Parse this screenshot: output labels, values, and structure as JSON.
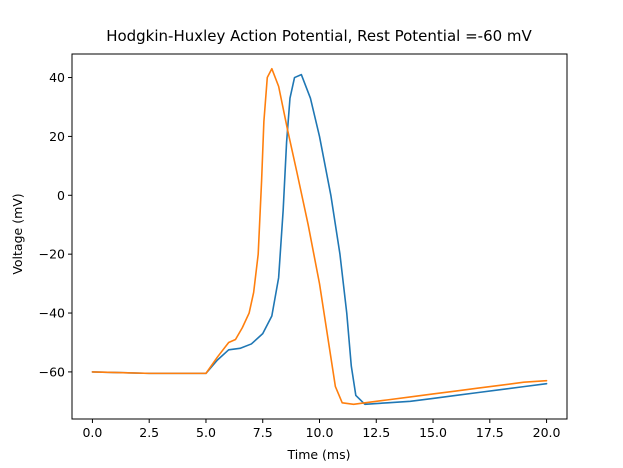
{
  "chart_data": {
    "type": "line",
    "title": "Hodgkin-Huxley Action Potential, Rest Potential =-60 mV",
    "xlabel": "Time (ms)",
    "ylabel": "Voltage (mV)",
    "xlim": [
      -0.9,
      20.9
    ],
    "ylim": [
      -76,
      48
    ],
    "xticks": [
      0.0,
      2.5,
      5.0,
      7.5,
      10.0,
      12.5,
      15.0,
      17.5,
      20.0
    ],
    "xtick_labels": [
      "0.0",
      "2.5",
      "5.0",
      "7.5",
      "10.0",
      "12.5",
      "15.0",
      "17.5",
      "20.0"
    ],
    "yticks": [
      40,
      20,
      0,
      -20,
      -40,
      -60
    ],
    "ytick_labels": [
      "40",
      "20",
      "0",
      "−20",
      "−40",
      "−60"
    ],
    "grid": false,
    "series": [
      {
        "color": "#1f77b4",
        "x": [
          0,
          2.5,
          5.0,
          5.5,
          6.0,
          6.5,
          7.0,
          7.5,
          7.9,
          8.2,
          8.4,
          8.55,
          8.7,
          8.9,
          9.2,
          9.6,
          10.0,
          10.5,
          10.9,
          11.2,
          11.4,
          11.6,
          12.0,
          13.0,
          14.0,
          15.0,
          16.0,
          17.0,
          18.0,
          19.0,
          20.0
        ],
        "y": [
          -60,
          -60.5,
          -60.5,
          -56,
          -52.5,
          -52,
          -50.5,
          -47,
          -41,
          -28,
          -5,
          18,
          33,
          40,
          41,
          33,
          20,
          0,
          -20,
          -40,
          -58,
          -68,
          -71,
          -70.5,
          -70,
          -69,
          -68,
          -67,
          -66,
          -65,
          -64
        ]
      },
      {
        "color": "#ff7f0e",
        "x": [
          0,
          2.5,
          5.0,
          5.5,
          6.0,
          6.3,
          6.6,
          6.9,
          7.1,
          7.3,
          7.45,
          7.55,
          7.7,
          7.9,
          8.2,
          8.6,
          9.0,
          9.5,
          10.0,
          10.4,
          10.7,
          11.0,
          11.5,
          12.0,
          13.0,
          14.0,
          15.0,
          16.0,
          17.0,
          18.0,
          19.0,
          20.0
        ],
        "y": [
          -60,
          -60.5,
          -60.5,
          -55,
          -50,
          -49,
          -45,
          -40,
          -33,
          -20,
          5,
          25,
          40,
          43,
          37,
          22,
          8,
          -10,
          -30,
          -50,
          -65,
          -70.5,
          -71,
          -70.5,
          -69.5,
          -68.5,
          -67.5,
          -66.5,
          -65.5,
          -64.5,
          -63.5,
          -63
        ]
      }
    ]
  }
}
